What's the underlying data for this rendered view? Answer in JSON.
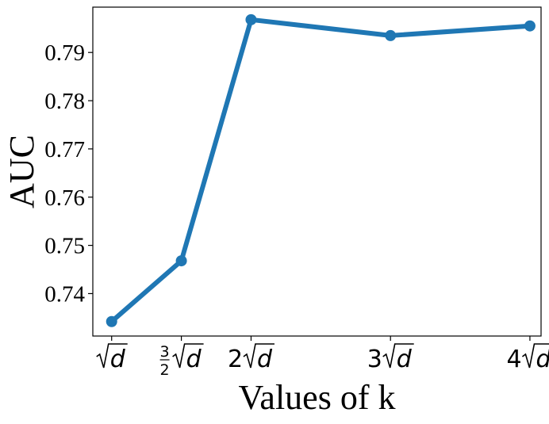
{
  "chart_data": {
    "type": "line",
    "xlabel": "Values of k",
    "ylabel": "AUC",
    "categories": [
      "√d",
      "3/2√d",
      "2√d",
      "3√d",
      "4√d"
    ],
    "x": [
      1,
      1.5,
      2,
      3,
      4
    ],
    "x_ticks": [
      {
        "x": 1,
        "coef": "",
        "frac_num": "",
        "frac_den": "",
        "sqrt_arg": "d"
      },
      {
        "x": 1.5,
        "coef": "",
        "frac_num": "3",
        "frac_den": "2",
        "sqrt_arg": "d"
      },
      {
        "x": 2,
        "coef": "2",
        "frac_num": "",
        "frac_den": "",
        "sqrt_arg": "d"
      },
      {
        "x": 3,
        "coef": "3",
        "frac_num": "",
        "frac_den": "",
        "sqrt_arg": "d"
      },
      {
        "x": 4,
        "coef": "4",
        "frac_num": "",
        "frac_den": "",
        "sqrt_arg": "d"
      }
    ],
    "series": [
      {
        "values": [
          0.7342,
          0.7468,
          0.7968,
          0.7935,
          0.7955
        ],
        "color": "#1f77b4"
      }
    ],
    "xlim": [
      0.865,
      4.08
    ],
    "ylim": [
      0.7312,
      0.7994
    ],
    "y_ticks": [
      {
        "value": 0.74,
        "label": "0.74"
      },
      {
        "value": 0.75,
        "label": "0.75"
      },
      {
        "value": 0.76,
        "label": "0.76"
      },
      {
        "value": 0.77,
        "label": "0.77"
      },
      {
        "value": 0.78,
        "label": "0.78"
      },
      {
        "value": 0.79,
        "label": "0.79"
      }
    ],
    "grid": false,
    "legend": "none"
  }
}
